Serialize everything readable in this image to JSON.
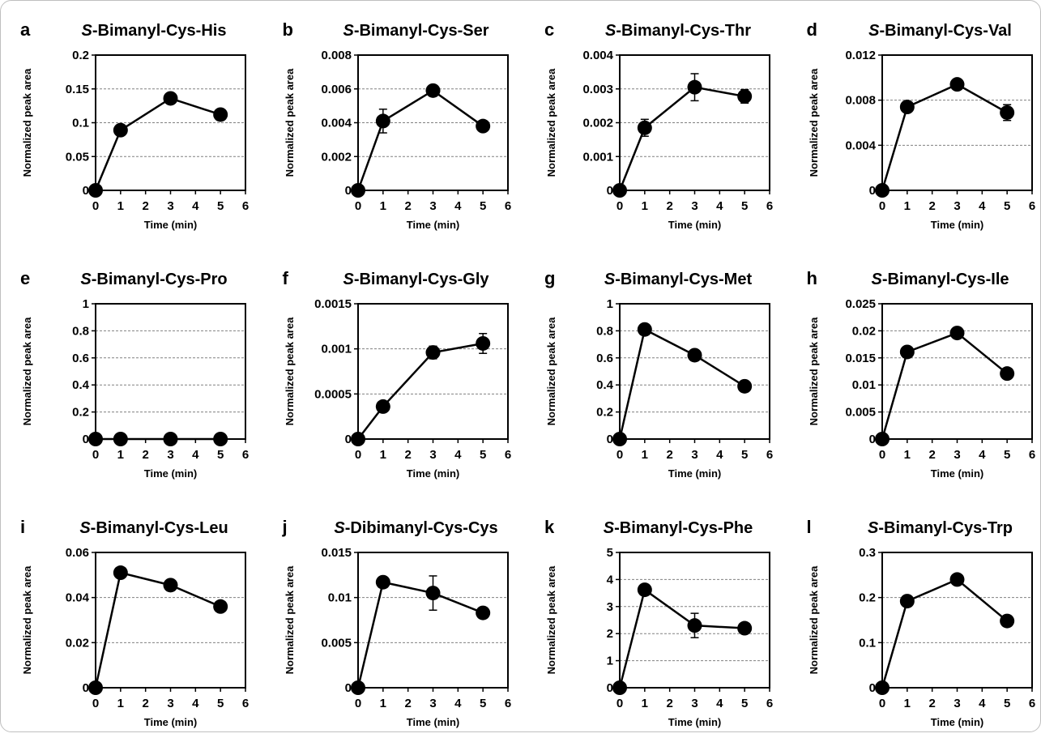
{
  "chart_data": [
    {
      "letter": "a",
      "title_italic": "S",
      "title_rest": "-Bimanyl-Cys-His",
      "type": "line",
      "x": [
        0,
        1,
        3,
        5
      ],
      "y": [
        0,
        0.089,
        0.136,
        0.112
      ],
      "yerr": [
        0,
        0.004,
        0.005,
        0.006
      ],
      "ylim": [
        0,
        0.2
      ],
      "yticks": [
        "0",
        "0.05",
        "0.1",
        "0.15",
        "0.2"
      ],
      "xlim": [
        0,
        6
      ],
      "xticks": [
        "0",
        "1",
        "2",
        "3",
        "4",
        "5",
        "6"
      ],
      "xlabel": "Time (min)",
      "ylabel": "Normalized peak area",
      "grid": "horizontal dashed"
    },
    {
      "letter": "b",
      "title_italic": "S",
      "title_rest": "-Bimanyl-Cys-Ser",
      "type": "line",
      "x": [
        0,
        1,
        3,
        5
      ],
      "y": [
        0,
        0.0041,
        0.0059,
        0.0038
      ],
      "yerr": [
        0,
        0.0007,
        0.0002,
        0.0002
      ],
      "ylim": [
        0,
        0.008
      ],
      "yticks": [
        "0",
        "0.002",
        "0.004",
        "0.006",
        "0.008"
      ],
      "xlim": [
        0,
        6
      ],
      "xticks": [
        "0",
        "1",
        "2",
        "3",
        "4",
        "5",
        "6"
      ],
      "xlabel": "Time (min)",
      "ylabel": "Normalized peak area",
      "grid": "horizontal dashed"
    },
    {
      "letter": "c",
      "title_italic": "S",
      "title_rest": "-Bimanyl-Cys-Thr",
      "type": "line",
      "x": [
        0,
        1,
        3,
        5
      ],
      "y": [
        0,
        0.00185,
        0.00305,
        0.00278
      ],
      "yerr": [
        0,
        0.00025,
        0.0004,
        0.0002
      ],
      "ylim": [
        0,
        0.004
      ],
      "yticks": [
        "0",
        "0.001",
        "0.002",
        "0.003",
        "0.004"
      ],
      "xlim": [
        0,
        6
      ],
      "xticks": [
        "0",
        "1",
        "2",
        "3",
        "4",
        "5",
        "6"
      ],
      "xlabel": "Time (min)",
      "ylabel": "Normalized peak area",
      "grid": "horizontal dashed"
    },
    {
      "letter": "d",
      "title_italic": "S",
      "title_rest": "-Bimanyl-Cys-Val",
      "type": "line",
      "x": [
        0,
        1,
        3,
        5
      ],
      "y": [
        0,
        0.0074,
        0.0094,
        0.0069
      ],
      "yerr": [
        0,
        0.0003,
        0.0002,
        0.0007
      ],
      "ylim": [
        0,
        0.012
      ],
      "yticks": [
        "0",
        "0.004",
        "0.008",
        "0.012"
      ],
      "xlim": [
        0,
        6
      ],
      "xticks": [
        "0",
        "1",
        "2",
        "3",
        "4",
        "5",
        "6"
      ],
      "xlabel": "Time (min)",
      "ylabel": "Normalized peak area",
      "grid": "horizontal dashed"
    },
    {
      "letter": "e",
      "title_italic": "S",
      "title_rest": "-Bimanyl-Cys-Pro",
      "type": "line",
      "x": [
        0,
        1,
        3,
        5
      ],
      "y": [
        0,
        0,
        0,
        0
      ],
      "yerr": [
        0,
        0,
        0,
        0
      ],
      "ylim": [
        0,
        1
      ],
      "yticks": [
        "0",
        "0.2",
        "0.4",
        "0.6",
        "0.8",
        "1"
      ],
      "xlim": [
        0,
        6
      ],
      "xticks": [
        "0",
        "1",
        "2",
        "3",
        "4",
        "5",
        "6"
      ],
      "xlabel": "Time (min)",
      "ylabel": "Normalized peak area",
      "grid": "horizontal dashed"
    },
    {
      "letter": "f",
      "title_italic": "S",
      "title_rest": "-Bimanyl-Cys-Gly",
      "type": "line",
      "x": [
        0,
        1,
        3,
        5
      ],
      "y": [
        0,
        0.00036,
        0.00096,
        0.00106
      ],
      "yerr": [
        0,
        2e-05,
        7e-05,
        0.00011
      ],
      "ylim": [
        0,
        0.0015
      ],
      "yticks": [
        "0",
        "0.0005",
        "0.001",
        "0.0015"
      ],
      "xlim": [
        0,
        6
      ],
      "xticks": [
        "0",
        "1",
        "2",
        "3",
        "4",
        "5",
        "6"
      ],
      "xlabel": "Time (min)",
      "ylabel": "Normalized peak area",
      "grid": "horizontal dashed"
    },
    {
      "letter": "g",
      "title_italic": "S",
      "title_rest": "-Bimanyl-Cys-Met",
      "type": "line",
      "x": [
        0,
        1,
        3,
        5
      ],
      "y": [
        0,
        0.81,
        0.62,
        0.39
      ],
      "yerr": [
        0,
        0.02,
        0.02,
        0.02
      ],
      "ylim": [
        0,
        1
      ],
      "yticks": [
        "0",
        "0.2",
        "0.4",
        "0.6",
        "0.8",
        "1"
      ],
      "xlim": [
        0,
        6
      ],
      "xticks": [
        "0",
        "1",
        "2",
        "3",
        "4",
        "5",
        "6"
      ],
      "xlabel": "Time (min)",
      "ylabel": "Normalized peak area",
      "grid": "horizontal dashed"
    },
    {
      "letter": "h",
      "title_italic": "S",
      "title_rest": "-Bimanyl-Cys-Ile",
      "type": "line",
      "x": [
        0,
        1,
        3,
        5
      ],
      "y": [
        0,
        0.0161,
        0.0196,
        0.0121
      ],
      "yerr": [
        0,
        0.0004,
        0.0005,
        0.0004
      ],
      "ylim": [
        0,
        0.025
      ],
      "yticks": [
        "0",
        "0.005",
        "0.01",
        "0.015",
        "0.02",
        "0.025"
      ],
      "xlim": [
        0,
        6
      ],
      "xticks": [
        "0",
        "1",
        "2",
        "3",
        "4",
        "5",
        "6"
      ],
      "xlabel": "Time (min)",
      "ylabel": "Normalized peak area",
      "grid": "horizontal dashed"
    },
    {
      "letter": "i",
      "title_italic": "S",
      "title_rest": "-Bimanyl-Cys-Leu",
      "type": "line",
      "x": [
        0,
        1,
        3,
        5
      ],
      "y": [
        0,
        0.051,
        0.0455,
        0.036
      ],
      "yerr": [
        0,
        0.001,
        0.0012,
        0.001
      ],
      "ylim": [
        0,
        0.06
      ],
      "yticks": [
        "0",
        "0.02",
        "0.04",
        "0.06"
      ],
      "xlim": [
        0,
        6
      ],
      "xticks": [
        "0",
        "1",
        "2",
        "3",
        "4",
        "5",
        "6"
      ],
      "xlabel": "Time (min)",
      "ylabel": "Normalized peak area",
      "grid": "horizontal dashed"
    },
    {
      "letter": "j",
      "title_italic": "S",
      "title_rest": "-Dibimanyl-Cys-Cys",
      "type": "line",
      "x": [
        0,
        1,
        3,
        5
      ],
      "y": [
        0,
        0.0117,
        0.0105,
        0.0083
      ],
      "yerr": [
        0,
        0.0003,
        0.0019,
        0.0004
      ],
      "ylim": [
        0,
        0.015
      ],
      "yticks": [
        "0",
        "0.005",
        "0.01",
        "0.015"
      ],
      "xlim": [
        0,
        6
      ],
      "xticks": [
        "0",
        "1",
        "2",
        "3",
        "4",
        "5",
        "6"
      ],
      "xlabel": "Time (min)",
      "ylabel": "Normalized peak area",
      "grid": "horizontal dashed"
    },
    {
      "letter": "k",
      "title_italic": "S",
      "title_rest": "-Bimanyl-Cys-Phe",
      "type": "line",
      "x": [
        0,
        1,
        3,
        5
      ],
      "y": [
        0,
        3.62,
        2.3,
        2.2
      ],
      "yerr": [
        0,
        0.12,
        0.45,
        0.12
      ],
      "ylim": [
        0,
        5
      ],
      "yticks": [
        "0",
        "1",
        "2",
        "3",
        "4",
        "5"
      ],
      "xlim": [
        0,
        6
      ],
      "xticks": [
        "0",
        "1",
        "2",
        "3",
        "4",
        "5",
        "6"
      ],
      "xlabel": "Time (min)",
      "ylabel": "Normalized peak area",
      "grid": "horizontal dashed"
    },
    {
      "letter": "l",
      "title_italic": "S",
      "title_rest": "-Bimanyl-Cys-Trp",
      "type": "line",
      "x": [
        0,
        1,
        3,
        5
      ],
      "y": [
        0,
        0.192,
        0.24,
        0.148
      ],
      "yerr": [
        0,
        0.005,
        0.006,
        0.005
      ],
      "ylim": [
        0,
        0.3
      ],
      "yticks": [
        "0",
        "0.1",
        "0.2",
        "0.3"
      ],
      "xlim": [
        0,
        6
      ],
      "xticks": [
        "0",
        "1",
        "2",
        "3",
        "4",
        "5",
        "6"
      ],
      "xlabel": "Time (min)",
      "ylabel": "Normalized peak area",
      "grid": "horizontal dashed"
    }
  ]
}
